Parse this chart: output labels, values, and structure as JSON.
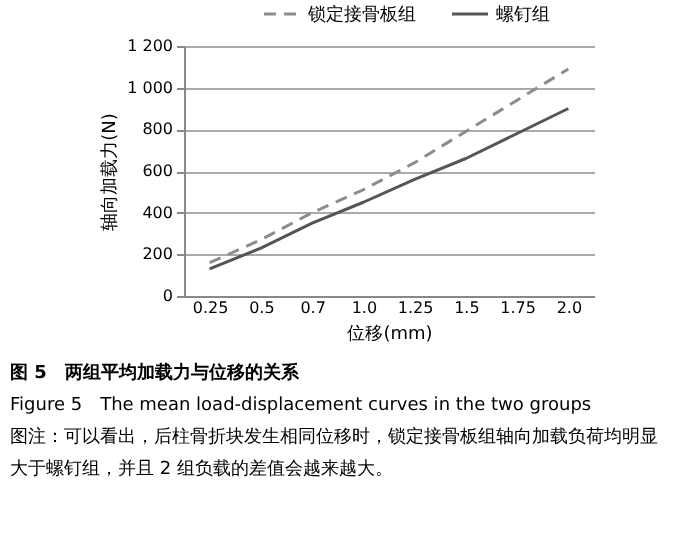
{
  "chart_data": {
    "type": "line",
    "title": "图 5　两组平均加载力与位移的关系",
    "xlabel": "位移(mm)",
    "ylabel": "轴向加载力(N)",
    "categories": [
      "0.25",
      "0.5",
      "0.7",
      "1.0",
      "1.25",
      "1.5",
      "1.75",
      "2.0"
    ],
    "series": [
      {
        "name": "锁定接骨板组",
        "color": "#8c8c8c",
        "line_style": "dashed",
        "values": [
          160,
          270,
          400,
          510,
          640,
          790,
          940,
          1090
        ]
      },
      {
        "name": "螺钉组",
        "color": "#555555",
        "line_style": "solid",
        "values": [
          130,
          230,
          350,
          450,
          560,
          660,
          780,
          900
        ]
      }
    ],
    "ylim": [
      0,
      1200
    ],
    "yticks": [
      0,
      200,
      400,
      600,
      800,
      {
        "value": 1000,
        "label": "1 000"
      },
      {
        "value": 1200,
        "label": "1 200"
      }
    ],
    "grid": "y",
    "legend": "top",
    "marker": "none",
    "annotations": [
      "Figure 5　The mean load-displacement curves in the two groups",
      "图注：可以看出，后柱骨折块发生相同位移时，锁定接骨板组轴向加载负荷均明显大于螺钉组，并且 2 组负载的差值会越来越大。"
    ]
  }
}
